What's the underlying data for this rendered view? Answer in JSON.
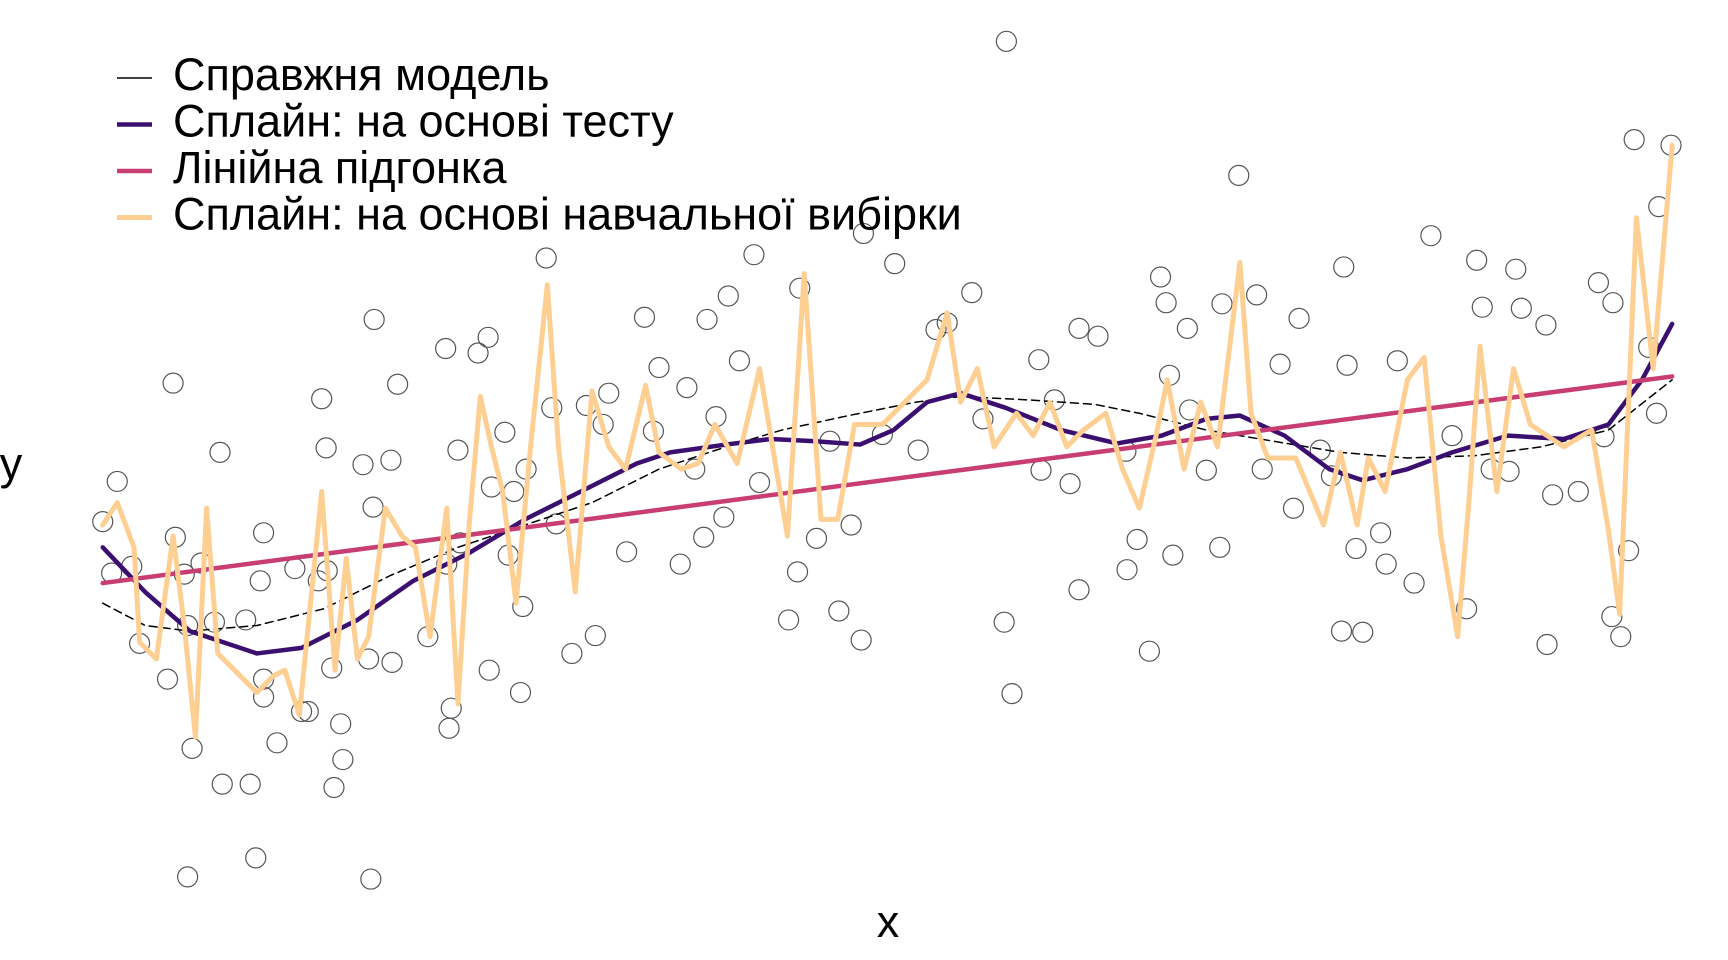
{
  "chart_data": {
    "type": "line",
    "xlabel": "x",
    "ylabel": "y",
    "xlim": [
      0.9,
      15.0
    ],
    "ylim": [
      1,
      8.7
    ],
    "legend": "top-left",
    "points": {
      "color": "#555555",
      "x": [
        0.92,
        1.0,
        1.05,
        1.18,
        1.25,
        1.5,
        1.55,
        1.57,
        1.65,
        1.68,
        1.72,
        1.68,
        1.8,
        1.92,
        1.97,
        1.99,
        2.2,
        2.24,
        2.29,
        2.33,
        2.36,
        2.36,
        2.36,
        2.48,
        2.64,
        2.7,
        2.76,
        2.85,
        2.88,
        2.92,
        2.93,
        2.97,
        2.99,
        3.05,
        3.07,
        3.25,
        3.3,
        3.32,
        3.34,
        3.35,
        3.5,
        3.51,
        3.56,
        3.83,
        3.99,
        4.0,
        4.02,
        4.04,
        4.1,
        4.12,
        4.28,
        4.37,
        4.38,
        4.4,
        4.52,
        4.55,
        4.6,
        4.66,
        4.68,
        4.71,
        4.89,
        4.94,
        4.98,
        5.12,
        5.25,
        5.33,
        5.4,
        5.45,
        5.61,
        5.77,
        5.85,
        5.9,
        6.09,
        6.15,
        6.22,
        6.3,
        6.33,
        6.41,
        6.48,
        6.52,
        6.62,
        6.75,
        6.8,
        7.06,
        7.14,
        7.16,
        7.31,
        7.43,
        7.51,
        7.62,
        7.71,
        7.73,
        7.9,
        8.01,
        8.22,
        8.38,
        8.48,
        8.7,
        8.8,
        8.99,
        9.01,
        9.06,
        9.3,
        9.32,
        9.44,
        9.58,
        9.66,
        9.66,
        9.83,
        10.08,
        10.09,
        10.18,
        10.29,
        10.39,
        10.44,
        10.47,
        10.5,
        10.63,
        10.65,
        10.8,
        10.92,
        10.94,
        11.09,
        11.25,
        11.3,
        11.46,
        11.58,
        11.63,
        11.82,
        11.92,
        12.01,
        12.03,
        12.06,
        12.14,
        12.2,
        12.36,
        12.41,
        12.51,
        12.66,
        12.81,
        13.0,
        13.13,
        13.22,
        13.27,
        13.35,
        13.51,
        13.57,
        13.62,
        13.84,
        13.85,
        13.9,
        14.13,
        14.31,
        14.36,
        14.43,
        14.44,
        14.51,
        14.58,
        14.63,
        14.76,
        14.83,
        14.85,
        14.96
      ],
      "y": [
        4.33,
        3.87,
        4.69,
        3.93,
        3.24,
        2.92,
        5.57,
        4.19,
        3.86,
        3.4,
        2.3,
        1.15,
        3.96,
        3.43,
        4.95,
        1.98,
        3.45,
        1.98,
        1.32,
        3.8,
        4.23,
        2.92,
        2.76,
        2.35,
        3.91,
        2.63,
        2.63,
        3.8,
        5.43,
        4.99,
        3.89,
        3.02,
        1.95,
        2.52,
        2.2,
        4.84,
        3.1,
        1.13,
        4.46,
        6.14,
        4.88,
        3.07,
        5.56,
        3.3,
        5.88,
        3.95,
        2.48,
        2.66,
        4.97,
        4.14,
        5.84,
        5.98,
        3.0,
        4.64,
        5.13,
        4.03,
        4.6,
        2.8,
        3.57,
        4.8,
        6.69,
        5.35,
        4.31,
        3.15,
        5.37,
        3.31,
        5.2,
        5.48,
        4.06,
        6.16,
        5.14,
        5.71,
        3.95,
        5.53,
        4.8,
        4.19,
        6.14,
        5.27,
        4.37,
        6.35,
        5.77,
        6.72,
        4.68,
        3.45,
        3.88,
        6.42,
        4.18,
        5.05,
        3.53,
        4.3,
        3.27,
        6.91,
        5.11,
        6.64,
        4.97,
        6.05,
        6.11,
        6.38,
        5.25,
        3.43,
        8.63,
        2.79,
        5.78,
        4.79,
        5.42,
        4.67,
        3.72,
        6.06,
        5.99,
        4.96,
        3.9,
        4.17,
        3.17,
        6.52,
        6.29,
        5.64,
        4.03,
        6.06,
        5.33,
        4.79,
        4.1,
        6.28,
        7.43,
        6.36,
        4.8,
        5.74,
        4.45,
        6.15,
        4.97,
        4.74,
        3.35,
        6.61,
        5.73,
        4.09,
        3.34,
        4.23,
        3.95,
        5.77,
        3.78,
        6.89,
        5.1,
        3.55,
        6.67,
        6.25,
        4.8,
        4.78,
        6.59,
        6.24,
        6.09,
        3.23,
        4.57,
        4.6,
        6.47,
        5.09,
        3.48,
        6.29,
        3.3,
        4.07,
        7.75,
        5.89,
        5.3,
        7.15,
        7.7
      ]
    },
    "series": [
      {
        "name": "Справжня модель",
        "color": "#000000",
        "width": 1.5,
        "dashed": true,
        "x": [
          0.92,
          1.3,
          1.7,
          2.3,
          2.9,
          3.5,
          4.1,
          4.7,
          5.3,
          5.9,
          6.5,
          7.0,
          7.6,
          8.2,
          8.6,
          9.2,
          9.8,
          10.2,
          10.8,
          11.4,
          12.0,
          12.6,
          13.2,
          13.8,
          14.4,
          14.97
        ],
        "values": [
          3.6,
          3.4,
          3.35,
          3.4,
          3.55,
          3.85,
          4.1,
          4.3,
          4.5,
          4.8,
          5.0,
          5.15,
          5.28,
          5.4,
          5.45,
          5.42,
          5.38,
          5.3,
          5.15,
          5.05,
          4.95,
          4.9,
          4.92,
          5.0,
          5.15,
          5.6
        ]
      },
      {
        "name": "Сплайн: на основі тесту",
        "color": "#3b0f70",
        "width": 4.5,
        "dashed": false,
        "x": [
          0.92,
          1.3,
          1.7,
          2.3,
          2.7,
          3.2,
          3.7,
          4.2,
          4.7,
          5.2,
          5.7,
          6.0,
          6.5,
          6.9,
          7.3,
          7.7,
          8.0,
          8.3,
          8.6,
          9.0,
          9.5,
          10.0,
          10.4,
          10.8,
          11.1,
          11.5,
          11.9,
          12.2,
          12.6,
          13.0,
          13.5,
          14.0,
          14.4,
          14.7,
          14.97
        ],
        "values": [
          4.1,
          3.7,
          3.35,
          3.15,
          3.2,
          3.45,
          3.8,
          4.05,
          4.35,
          4.6,
          4.85,
          4.95,
          5.02,
          5.07,
          5.05,
          5.02,
          5.15,
          5.4,
          5.48,
          5.35,
          5.15,
          5.03,
          5.1,
          5.25,
          5.28,
          5.1,
          4.8,
          4.7,
          4.8,
          4.95,
          5.1,
          5.07,
          5.2,
          5.6,
          6.1
        ]
      },
      {
        "name": "Лінійна підгонка",
        "color": "#c83e73",
        "width": 4.5,
        "dashed": false,
        "x": [
          0.92,
          14.97
        ],
        "values": [
          3.78,
          5.63
        ]
      },
      {
        "name": "Сплайн: на основі навчальної вибірки",
        "color": "#fecf92",
        "width": 5,
        "dashed": false,
        "x": [
          0.92,
          1.05,
          1.2,
          1.25,
          1.4,
          1.55,
          1.65,
          1.75,
          1.85,
          1.95,
          2.1,
          2.3,
          2.45,
          2.55,
          2.68,
          2.8,
          2.88,
          3.0,
          3.1,
          3.2,
          3.3,
          3.45,
          3.6,
          3.72,
          3.85,
          4.0,
          4.1,
          4.2,
          4.3,
          4.4,
          4.5,
          4.62,
          4.75,
          4.9,
          5.0,
          5.15,
          5.3,
          5.45,
          5.6,
          5.78,
          5.9,
          6.1,
          6.25,
          6.4,
          6.6,
          6.8,
          6.9,
          7.05,
          7.2,
          7.35,
          7.5,
          7.65,
          7.9,
          8.1,
          8.3,
          8.48,
          8.6,
          8.75,
          8.9,
          9.1,
          9.25,
          9.4,
          9.55,
          9.7,
          9.9,
          10.05,
          10.2,
          10.35,
          10.45,
          10.6,
          10.75,
          10.9,
          11.1,
          11.2,
          11.35,
          11.6,
          11.85,
          12.0,
          12.15,
          12.25,
          12.4,
          12.6,
          12.75,
          12.9,
          13.05,
          13.15,
          13.25,
          13.4,
          13.55,
          13.7,
          14.0,
          14.25,
          14.4,
          14.5,
          14.65,
          14.8,
          14.97
        ],
        "values": [
          4.3,
          4.5,
          4.1,
          3.25,
          3.1,
          4.2,
          3.4,
          2.4,
          4.45,
          3.15,
          3.0,
          2.8,
          2.95,
          3.0,
          2.6,
          3.8,
          4.6,
          3.0,
          4.0,
          3.1,
          3.3,
          4.45,
          4.2,
          4.1,
          3.3,
          4.45,
          2.7,
          4.3,
          5.45,
          5.0,
          4.6,
          3.6,
          5.0,
          6.45,
          5.0,
          3.7,
          5.5,
          5.0,
          4.8,
          5.55,
          4.95,
          4.8,
          4.85,
          5.2,
          4.85,
          5.7,
          5.1,
          4.2,
          6.55,
          4.35,
          4.35,
          5.2,
          5.2,
          5.4,
          5.6,
          6.2,
          5.4,
          5.7,
          5.0,
          5.3,
          5.1,
          5.4,
          5.0,
          5.15,
          5.3,
          4.8,
          4.45,
          5.1,
          5.6,
          4.8,
          5.4,
          5.0,
          6.65,
          5.3,
          4.9,
          4.9,
          4.3,
          4.95,
          4.3,
          4.9,
          4.6,
          5.6,
          5.8,
          4.2,
          3.3,
          4.5,
          5.9,
          4.6,
          5.7,
          5.2,
          5.0,
          5.15,
          4.25,
          3.5,
          7.05,
          5.7,
          7.7
        ]
      }
    ]
  }
}
